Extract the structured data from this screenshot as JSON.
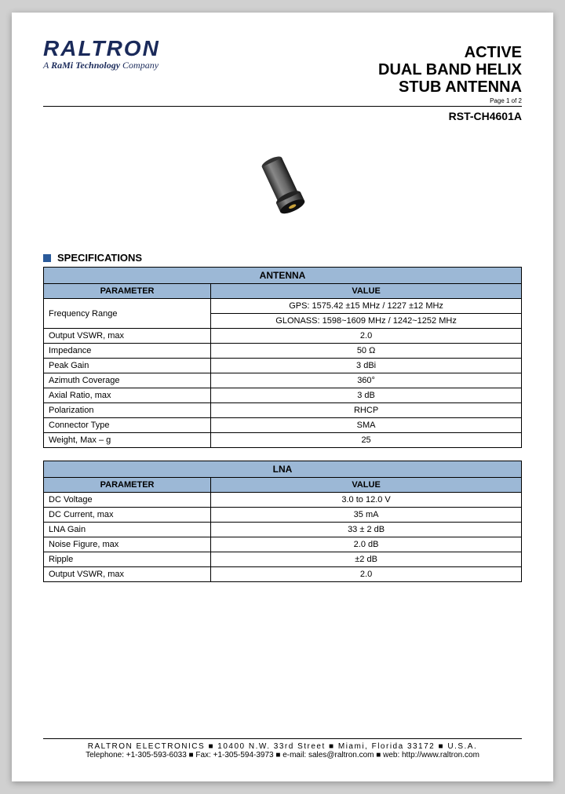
{
  "logo": {
    "brand": "RALTRON",
    "sub_prefix": "A ",
    "sub_bold": "RaMi Technology",
    "sub_suffix": " Company"
  },
  "title": {
    "line1": "ACTIVE",
    "line2": "DUAL BAND HELIX",
    "line3": "STUB ANTENNA"
  },
  "page_label": "Page 1 of 2",
  "part_number": "RST-CH4601A",
  "section_label": "SPECIFICATIONS",
  "table1": {
    "title": "ANTENNA",
    "header_param": "PARAMETER",
    "header_value": "VALUE",
    "header_bg": "#9cb8d6",
    "freq_label": "Frequency Range",
    "freq_v1": "GPS: 1575.42 ±15 MHz / 1227 ±12 MHz",
    "freq_v2": "GLONASS: 1598~1609 MHz / 1242~1252 MHz",
    "rows": [
      {
        "param": "Output VSWR, max",
        "value": "2.0"
      },
      {
        "param": "Impedance",
        "value": "50 Ω"
      },
      {
        "param": "Peak Gain",
        "value": "3 dBi"
      },
      {
        "param": "Azimuth Coverage",
        "value": "360°"
      },
      {
        "param": "Axial Ratio, max",
        "value": "3 dB"
      },
      {
        "param": "Polarization",
        "value": "RHCP"
      },
      {
        "param": "Connector Type",
        "value": "SMA"
      },
      {
        "param": "Weight, Max – g",
        "value": "25"
      }
    ]
  },
  "table2": {
    "title": "LNA",
    "header_param": "PARAMETER",
    "header_value": "VALUE",
    "header_bg": "#9cb8d6",
    "rows": [
      {
        "param": "DC Voltage",
        "value": "3.0 to 12.0 V"
      },
      {
        "param": "DC Current, max",
        "value": "35 mA"
      },
      {
        "param": "LNA Gain",
        "value": "33 ± 2 dB"
      },
      {
        "param": "Noise Figure, max",
        "value": "2.0 dB"
      },
      {
        "param": "Ripple",
        "value": "±2 dB"
      },
      {
        "param": "Output VSWR, max",
        "value": "2.0"
      }
    ]
  },
  "footer": {
    "line1": "RALTRON ELECTRONICS ■ 10400 N.W. 33rd Street ■ Miami, Florida 33172 ■ U.S.A.",
    "line2": "Telephone: +1-305-593-6033  ■  Fax: +1-305-594-3973  ■  e-mail: sales@raltron.com  ■  web: http://www.raltron.com"
  },
  "colors": {
    "page_bg": "#ffffff",
    "body_bg": "#d0d0d0",
    "table_header_bg": "#9cb8d6",
    "bullet": "#2a5a9a",
    "logo_color": "#1a2a5a"
  }
}
